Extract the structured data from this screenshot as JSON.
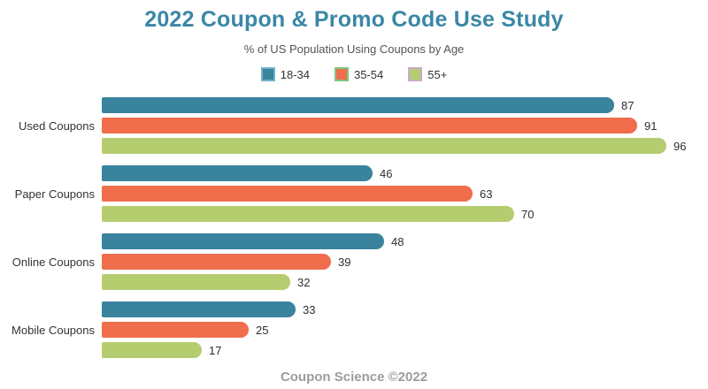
{
  "title": "2022 Coupon & Promo Code Use Study",
  "subtitle": "% of US Population Using Coupons by Age",
  "footer": "Coupon Science ©2022",
  "colors": {
    "title": "#3a87a6",
    "subtitle": "#545454",
    "footer": "#9c9c9c",
    "category_label": "#333333",
    "value_label": "#2e2e2e",
    "background": "#ffffff"
  },
  "legend": [
    {
      "label": "18-34",
      "color": "#39839d",
      "border": "#74b3c9"
    },
    {
      "label": "35-54",
      "color": "#f06e4c",
      "border": "#83c57f"
    },
    {
      "label": "55+",
      "color": "#b5cd6e",
      "border": "#c8abc9"
    }
  ],
  "chart_data": {
    "type": "bar",
    "orientation": "horizontal",
    "title": "2022 Coupon & Promo Code Use Study",
    "subtitle": "% of US Population Using Coupons by Age",
    "categories": [
      "Used Coupons",
      "Paper Coupons",
      "Online Coupons",
      "Mobile Coupons"
    ],
    "series": [
      {
        "name": "18-34",
        "color": "#39839d",
        "values": [
          87,
          46,
          48,
          33
        ]
      },
      {
        "name": "35-54",
        "color": "#f06e4c",
        "values": [
          91,
          63,
          39,
          25
        ]
      },
      {
        "name": "55+",
        "color": "#b5cd6e",
        "values": [
          96,
          70,
          32,
          17
        ]
      }
    ],
    "xlim": [
      0,
      100
    ],
    "value_labels": true,
    "grid": false,
    "legend_position": "top",
    "source": "Coupon Science ©2022"
  }
}
